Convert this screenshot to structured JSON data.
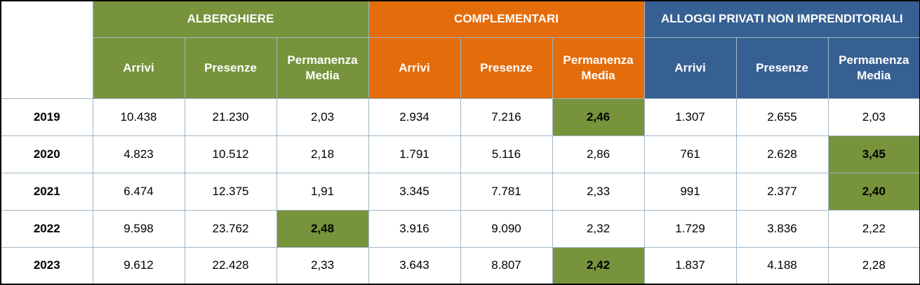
{
  "groups": [
    {
      "label": "ALBERGHIERE",
      "color": "#77933c"
    },
    {
      "label": "COMPLEMENTARI",
      "color": "#e46c0a"
    },
    {
      "label": "ALLOGGI PRIVATI NON IMPRENDITORIALI",
      "color": "#376092"
    }
  ],
  "subheaders": {
    "arrivi": "Arrivi",
    "presenze": "Presenze",
    "permanenza": "Permanenza Media"
  },
  "highlight_color": "#77933c",
  "rows": [
    {
      "year": "2019",
      "cells": [
        "10.438",
        "21.230",
        "2,03",
        "2.934",
        "7.216",
        "2,46",
        "1.307",
        "2.655",
        "2,03"
      ],
      "highlighted": [
        5
      ]
    },
    {
      "year": "2020",
      "cells": [
        "4.823",
        "10.512",
        "2,18",
        "1.791",
        "5.116",
        "2,86",
        "761",
        "2.628",
        "3,45"
      ],
      "highlighted": [
        8
      ]
    },
    {
      "year": "2021",
      "cells": [
        "6.474",
        "12.375",
        "1,91",
        "3.345",
        "7.781",
        "2,33",
        "991",
        "2.377",
        "2,40"
      ],
      "highlighted": [
        8
      ]
    },
    {
      "year": "2022",
      "cells": [
        "9.598",
        "23.762",
        "2,48",
        "3.916",
        "9.090",
        "2,32",
        "1.729",
        "3.836",
        "2,22"
      ],
      "highlighted": [
        2
      ]
    },
    {
      "year": "2023",
      "cells": [
        "9.612",
        "22.428",
        "2,33",
        "3.643",
        "8.807",
        "2,42",
        "1.837",
        "4.188",
        "2,28"
      ],
      "highlighted": [
        5
      ]
    }
  ]
}
